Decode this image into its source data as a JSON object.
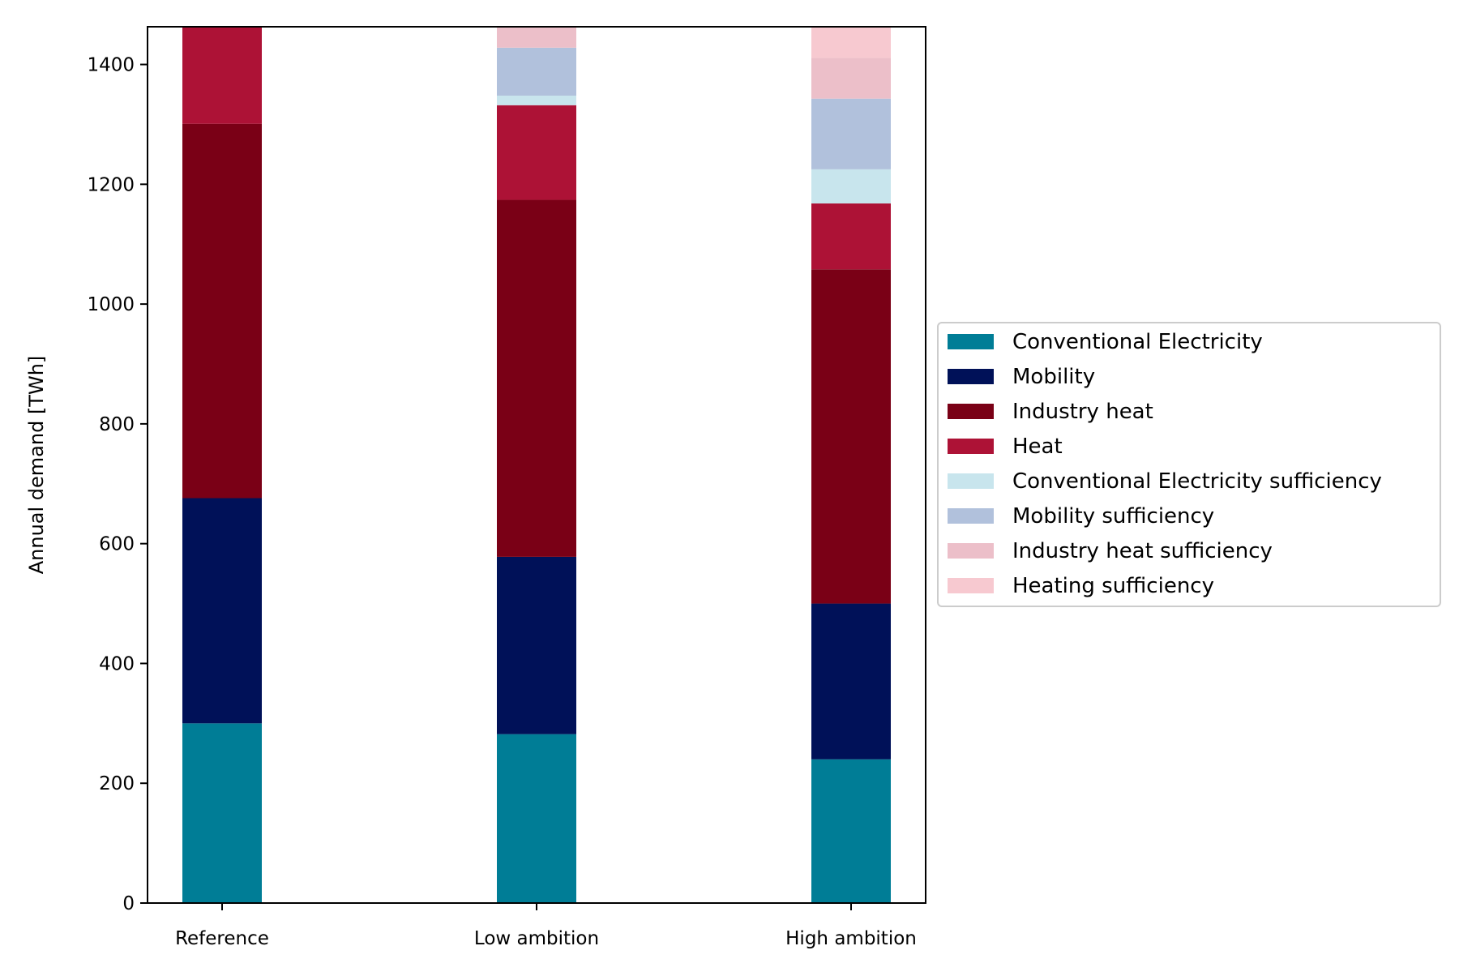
{
  "chart_data": {
    "type": "bar",
    "stacked": true,
    "title": "",
    "xlabel": "",
    "ylabel": "Annual demand [TWh]",
    "categories": [
      "Reference",
      "Low ambition",
      "High ambition"
    ],
    "ylim": [
      0,
      1463
    ],
    "yticks": [
      0,
      200,
      400,
      600,
      800,
      1000,
      1200,
      1400
    ],
    "grid": false,
    "legend_position": "right, outside plot",
    "series": [
      {
        "name": "Conventional Electricity",
        "color": "#007d96",
        "values": [
          300,
          282,
          240
        ]
      },
      {
        "name": "Mobility",
        "color": "#001158",
        "values": [
          376,
          296,
          260
        ]
      },
      {
        "name": "Industry heat",
        "color": "#7a0016",
        "values": [
          625,
          596,
          558
        ]
      },
      {
        "name": "Heat",
        "color": "#ad1236",
        "values": [
          162,
          158,
          110
        ]
      },
      {
        "name": "Conventional Electricity sufficiency",
        "color": "#c8e5ed",
        "values": [
          0,
          16,
          57
        ]
      },
      {
        "name": "Mobility sufficiency",
        "color": "#b1c1dc",
        "values": [
          0,
          80,
          118
        ]
      },
      {
        "name": "Industry heat sufficiency",
        "color": "#ecbfc9",
        "values": [
          0,
          35,
          68
        ]
      },
      {
        "name": "Heating sufficiency",
        "color": "#f7c9d0",
        "values": [
          0,
          0,
          53
        ]
      }
    ]
  }
}
